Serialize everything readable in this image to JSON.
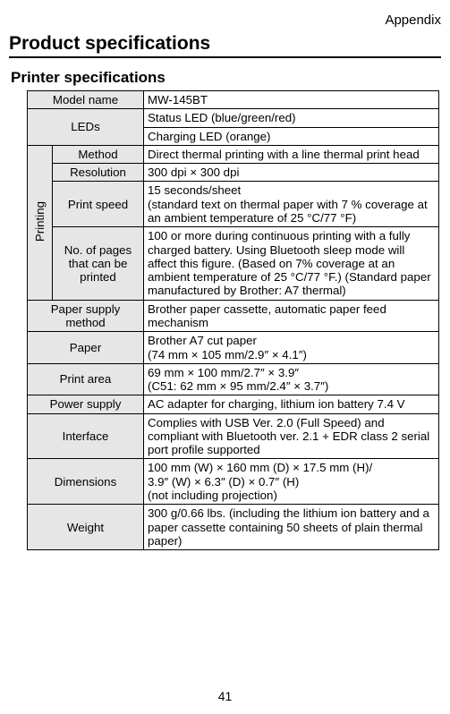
{
  "header_label": "Appendix",
  "title": "Product specifications",
  "subtitle": "Printer specifications",
  "page_number": "41",
  "colors": {
    "label_bg": "#e6e6e6",
    "border": "#000000",
    "text": "#000000",
    "bg": "#ffffff"
  },
  "table": {
    "rows": [
      {
        "label": "Model name",
        "value": "MW-145BT"
      },
      {
        "label": "LEDs",
        "value1": "Status LED (blue/green/red)",
        "value2": "Charging LED (orange)"
      },
      {
        "group": "Printing",
        "items": [
          {
            "label": "Method",
            "value": "Direct thermal printing with a line thermal print head"
          },
          {
            "label": "Resolution",
            "value": "300 dpi × 300 dpi"
          },
          {
            "label": "Print speed",
            "value": "15 seconds/sheet\n(standard text on thermal paper with 7 % coverage at an ambient temperature of 25 °C/77 °F)"
          },
          {
            "label": "No. of pages that can be printed",
            "value": "100 or more during continuous printing with a fully charged battery. Using Bluetooth sleep mode will affect this figure. (Based on 7% coverage at an ambient temperature of 25 °C/77 °F.) (Standard paper manufactured by Brother: A7 thermal)"
          }
        ]
      },
      {
        "label": "Paper supply method",
        "value": "Brother paper cassette, automatic paper feed mechanism"
      },
      {
        "label": "Paper",
        "value": "Brother A7 cut paper\n(74 mm × 105 mm/2.9″ × 4.1″)"
      },
      {
        "label": "Print area",
        "value": "69 mm × 100 mm/2.7″ × 3.9″\n(C51: 62 mm × 95 mm/2.4″ × 3.7″)"
      },
      {
        "label": "Power supply",
        "value": "AC adapter for charging, lithium ion battery 7.4 V"
      },
      {
        "label": "Interface",
        "value": "Complies with USB Ver. 2.0 (Full Speed) and compliant with Bluetooth ver. 2.1 + EDR class 2 serial port profile supported"
      },
      {
        "label": "Dimensions",
        "value": "100 mm (W) × 160 mm (D) × 17.5 mm (H)/\n3.9″ (W) × 6.3″ (D) × 0.7″ (H)\n(not including projection)"
      },
      {
        "label": "Weight",
        "value": "300 g/0.66 lbs. (including the lithium ion battery and a paper cassette containing 50 sheets of plain thermal paper)"
      }
    ]
  }
}
